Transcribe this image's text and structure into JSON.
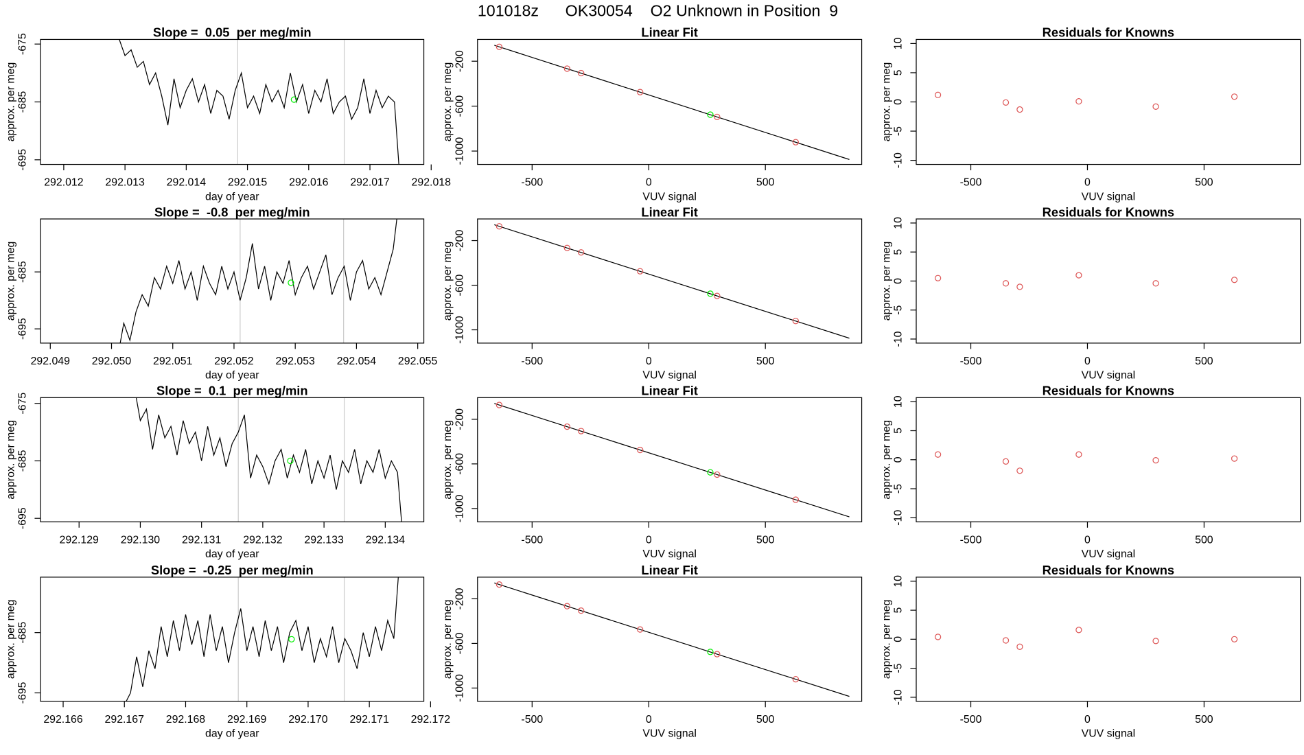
{
  "title": "101018z      OK30054    O2 Unknown in Position  9",
  "chart_data": [
    {
      "type": "line",
      "title": "Slope =  0.05  per meg/min",
      "x_label": "day of year",
      "y_label": "approx. per meg",
      "color": "#000000",
      "x": [
        292.0128,
        292.0129,
        292.013,
        292.0131,
        292.0132,
        292.0133,
        292.0134,
        292.0135,
        292.0136,
        292.0137,
        292.0138,
        292.0139,
        292.014,
        292.0141,
        292.0142,
        292.0143,
        292.0144,
        292.0145,
        292.0146,
        292.0147,
        292.0148,
        292.0149,
        292.015,
        292.0151,
        292.0152,
        292.0153,
        292.0154,
        292.0155,
        292.0156,
        292.0157,
        292.0158,
        292.0159,
        292.016,
        292.0161,
        292.0162,
        292.0163,
        292.0164,
        292.0165,
        292.0166,
        292.0167,
        292.0168,
        292.0169,
        292.017,
        292.0171,
        292.0172,
        292.0173,
        292.0174,
        292.0175
      ],
      "values": [
        -668,
        -674,
        -677,
        -676,
        -679,
        -678,
        -682,
        -680,
        -684,
        -689,
        -681,
        -686,
        -683,
        -681,
        -685,
        -682,
        -687,
        -683,
        -684,
        -688,
        -683,
        -680,
        -686,
        -684,
        -687,
        -682,
        -685,
        -683,
        -686,
        -680,
        -685,
        -682,
        -687,
        -683,
        -685,
        -681,
        -687,
        -685,
        -684,
        -688,
        -686,
        -681,
        -687,
        -683,
        -686,
        -684,
        -685,
        -700
      ],
      "xlim": [
        292.01162,
        292.01788
      ],
      "ylim": [
        -695.8,
        -674.2
      ],
      "xticks": [
        292.012,
        292.013,
        292.014,
        292.015,
        292.016,
        292.017,
        292.018
      ],
      "yticks": [
        -695,
        -685,
        -675
      ],
      "vlines": [
        292.01484,
        292.01658
      ],
      "vline_color": "#cccccc",
      "points": {
        "x": [
          292.01576
        ],
        "values": [
          -684.6
        ],
        "color": "#00ee00"
      }
    },
    {
      "type": "scatter",
      "title": "Linear Fit",
      "x_label": "VUV signal",
      "y_label": "approx. per meg",
      "color": "#dd5555",
      "x": [
        -641,
        -350,
        -290,
        -37,
        293,
        630
      ],
      "values": [
        -72,
        -266,
        -306,
        -475,
        -696,
        -921
      ],
      "points": {
        "x": [
          264
        ],
        "values": [
          -676
        ],
        "color": "#00ee00"
      },
      "fit_line": {
        "x": [
          -662,
          860
        ],
        "values": [
          -58,
          -1075
        ],
        "color": "#000000"
      },
      "xlim": [
        -734,
        913
      ],
      "ylim": [
        -1119,
        -6
      ],
      "xticks": [
        -500,
        0,
        500
      ],
      "yticks": [
        -1000,
        -600,
        -200
      ]
    },
    {
      "type": "scatter",
      "title": "Residuals for Knowns",
      "x_label": "VUV signal",
      "y_label": "approx. per meg",
      "color": "#dd5555",
      "x": [
        -641,
        -350,
        -290,
        -37,
        293,
        630
      ],
      "values": [
        1.2,
        -0.1,
        -1.3,
        0.1,
        -0.8,
        0.9
      ],
      "xlim": [
        -734,
        913
      ],
      "ylim": [
        -10.7,
        10.7
      ],
      "xticks": [
        -500,
        0,
        500
      ],
      "yticks": [
        -10,
        -5,
        0,
        5,
        10
      ]
    },
    {
      "type": "line",
      "title": "Slope =  -0.8  per meg/min",
      "x_label": "day of year",
      "y_label": "approx. per meg",
      "color": "#000000",
      "x": [
        292.0501,
        292.0502,
        292.0503,
        292.0504,
        292.0505,
        292.0506,
        292.0507,
        292.0508,
        292.0509,
        292.051,
        292.0511,
        292.0512,
        292.0513,
        292.0514,
        292.0515,
        292.0516,
        292.0517,
        292.0518,
        292.0519,
        292.052,
        292.0521,
        292.0522,
        292.0523,
        292.0524,
        292.0525,
        292.0526,
        292.0527,
        292.0528,
        292.0529,
        292.053,
        292.0531,
        292.0532,
        292.0533,
        292.0534,
        292.0535,
        292.0536,
        292.0537,
        292.0538,
        292.0539,
        292.054,
        292.0541,
        292.0542,
        292.0543,
        292.0544,
        292.0545,
        292.0546,
        292.0547
      ],
      "values": [
        -700,
        -694,
        -697,
        -692,
        -689,
        -691,
        -686,
        -688,
        -684,
        -687,
        -683,
        -688,
        -685,
        -690,
        -684,
        -687,
        -689,
        -684,
        -688,
        -685,
        -690,
        -686,
        -680,
        -688,
        -684,
        -690,
        -685,
        -687,
        -683,
        -689,
        -686,
        -684,
        -688,
        -685,
        -682,
        -689,
        -686,
        -684,
        -690,
        -685,
        -683,
        -688,
        -686,
        -689,
        -685,
        -681,
        -672
      ],
      "xlim": [
        292.04884,
        292.0551
      ],
      "ylim": [
        -697.5,
        -675.7
      ],
      "xticks": [
        292.049,
        {
          "value": 292.05,
          "label": "292.050"
        },
        292.051,
        292.052,
        292.053,
        292.054,
        292.055
      ],
      "yticks": [
        -695,
        -685
      ],
      "vlines": [
        292.0521,
        292.05379
      ],
      "vline_color": "#cccccc",
      "points": {
        "x": [
          292.05293
        ],
        "values": [
          -686.9
        ],
        "color": "#00ee00"
      }
    },
    {
      "type": "scatter",
      "title": "Linear Fit",
      "x_label": "VUV signal",
      "y_label": "approx. per meg",
      "color": "#dd5555",
      "x": [
        -641,
        -350,
        -290,
        -37,
        293,
        630
      ],
      "values": [
        -72,
        -266,
        -306,
        -475,
        -696,
        -921
      ],
      "points": {
        "x": [
          264
        ],
        "values": [
          -676
        ],
        "color": "#00ee00"
      },
      "fit_line": {
        "x": [
          -662,
          860
        ],
        "values": [
          -58,
          -1075
        ],
        "color": "#000000"
      },
      "xlim": [
        -734,
        913
      ],
      "ylim": [
        -1119,
        -6
      ],
      "xticks": [
        -500,
        0,
        500
      ],
      "yticks": [
        -1000,
        -600,
        -200
      ]
    },
    {
      "type": "scatter",
      "title": "Residuals for Knowns",
      "x_label": "VUV signal",
      "y_label": "approx. per meg",
      "color": "#dd5555",
      "x": [
        -641,
        -350,
        -290,
        -37,
        293,
        630
      ],
      "values": [
        0.5,
        -0.4,
        -1.0,
        1.0,
        -0.4,
        0.2
      ],
      "xlim": [
        -734,
        913
      ],
      "ylim": [
        -10.7,
        10.7
      ],
      "xticks": [
        -500,
        0,
        500
      ],
      "yticks": [
        -10,
        -5,
        0,
        5,
        10
      ]
    },
    {
      "type": "line",
      "title": "Slope =  0.1  per meg/min",
      "x_label": "day of year",
      "y_label": "approx. per meg",
      "color": "#000000",
      "x": [
        292.1299,
        292.13,
        292.1301,
        292.1302,
        292.1303,
        292.1304,
        292.1305,
        292.1306,
        292.1307,
        292.1308,
        292.1309,
        292.131,
        292.1311,
        292.1312,
        292.1313,
        292.1314,
        292.1315,
        292.1316,
        292.1317,
        292.1318,
        292.1319,
        292.132,
        292.1321,
        292.1322,
        292.1323,
        292.1324,
        292.1325,
        292.1326,
        292.1327,
        292.1328,
        292.1329,
        292.133,
        292.1331,
        292.1332,
        292.1333,
        292.1334,
        292.1335,
        292.1336,
        292.1337,
        292.1338,
        292.1339,
        292.134,
        292.1341,
        292.1342,
        292.1343
      ],
      "values": [
        -672,
        -678,
        -676,
        -683,
        -677,
        -681,
        -679,
        -684,
        -678,
        -682,
        -680,
        -685,
        -679,
        -684,
        -681,
        -686,
        -682,
        -680,
        -677,
        -688,
        -684,
        -686,
        -689,
        -685,
        -683,
        -688,
        -684,
        -687,
        -683,
        -689,
        -685,
        -688,
        -684,
        -690,
        -685,
        -687,
        -683,
        -689,
        -685,
        -687,
        -683,
        -688,
        -685,
        -687,
        -700
      ],
      "xlim": [
        292.12837,
        292.13463
      ],
      "ylim": [
        -695.6,
        -674.0
      ],
      "xticks": [
        292.129,
        {
          "value": 292.13,
          "label": "292.130"
        },
        292.131,
        292.132,
        292.133,
        292.134
      ],
      "yticks": [
        -695,
        -685,
        -675
      ],
      "vlines": [
        292.1316,
        292.13333
      ],
      "vline_color": "#cccccc",
      "points": {
        "x": [
          292.13245
        ],
        "values": [
          -685.0
        ],
        "color": "#00ee00"
      }
    },
    {
      "type": "scatter",
      "title": "Linear Fit",
      "x_label": "VUV signal",
      "y_label": "approx. per meg",
      "color": "#dd5555",
      "x": [
        -641,
        -350,
        -290,
        -37,
        293,
        630
      ],
      "values": [
        -72,
        -266,
        -306,
        -475,
        -696,
        -921
      ],
      "points": {
        "x": [
          264
        ],
        "values": [
          -676
        ],
        "color": "#00ee00"
      },
      "fit_line": {
        "x": [
          -662,
          860
        ],
        "values": [
          -58,
          -1075
        ],
        "color": "#000000"
      },
      "xlim": [
        -734,
        913
      ],
      "ylim": [
        -1119,
        -6
      ],
      "xticks": [
        -500,
        0,
        500
      ],
      "yticks": [
        -1000,
        -600,
        -200
      ]
    },
    {
      "type": "scatter",
      "title": "Residuals for Knowns",
      "x_label": "VUV signal",
      "y_label": "approx. per meg",
      "color": "#dd5555",
      "x": [
        -641,
        -350,
        -290,
        -37,
        293,
        630
      ],
      "values": [
        0.9,
        -0.3,
        -1.9,
        0.9,
        -0.1,
        0.2
      ],
      "xlim": [
        -734,
        913
      ],
      "ylim": [
        -10.7,
        10.7
      ],
      "xticks": [
        -500,
        0,
        500
      ],
      "yticks": [
        -10,
        -5,
        0,
        5,
        10
      ]
    },
    {
      "type": "line",
      "title": "Slope =  -0.25  per meg/min",
      "x_label": "day of year",
      "y_label": "approx. per meg",
      "color": "#000000",
      "x": [
        292.167,
        292.1671,
        292.1672,
        292.1673,
        292.1674,
        292.1675,
        292.1676,
        292.1677,
        292.1678,
        292.1679,
        292.168,
        292.1681,
        292.1682,
        292.1683,
        292.1684,
        292.1685,
        292.1686,
        292.1687,
        292.1688,
        292.1689,
        292.169,
        292.1691,
        292.1692,
        292.1693,
        292.1694,
        292.1695,
        292.1696,
        292.1697,
        292.1698,
        292.1699,
        292.17,
        292.1701,
        292.1702,
        292.1703,
        292.1704,
        292.1705,
        292.1706,
        292.1707,
        292.1708,
        292.1709,
        292.171,
        292.1711,
        292.1712,
        292.1713,
        292.1714,
        292.1715
      ],
      "values": [
        -697,
        -695,
        -689,
        -694,
        -688,
        -691,
        -684,
        -689,
        -683,
        -688,
        -682,
        -687,
        -683,
        -689,
        -682,
        -688,
        -684,
        -690,
        -685,
        -681,
        -688,
        -684,
        -689,
        -683,
        -688,
        -684,
        -690,
        -685,
        -683,
        -688,
        -684,
        -690,
        -686,
        -689,
        -684,
        -690,
        -686,
        -688,
        -691,
        -685,
        -689,
        -684,
        -688,
        -683,
        -686,
        -672
      ],
      "xlim": [
        292.16563,
        292.17189
      ],
      "ylim": [
        -696.4,
        -675.8
      ],
      "xticks": [
        292.166,
        292.167,
        292.168,
        292.169,
        {
          "value": 292.17,
          "label": "292.170"
        },
        292.171,
        292.172
      ],
      "yticks": [
        -695,
        -685
      ],
      "vlines": [
        292.16886,
        292.17059
      ],
      "vline_color": "#cccccc",
      "points": {
        "x": [
          292.16973
        ],
        "values": [
          -686.1
        ],
        "color": "#00ee00"
      }
    },
    {
      "type": "scatter",
      "title": "Linear Fit",
      "x_label": "VUV signal",
      "y_label": "approx. per meg",
      "color": "#dd5555",
      "x": [
        -641,
        -350,
        -290,
        -37,
        293,
        630
      ],
      "values": [
        -72,
        -266,
        -306,
        -475,
        -696,
        -921
      ],
      "points": {
        "x": [
          264
        ],
        "values": [
          -676
        ],
        "color": "#00ee00"
      },
      "fit_line": {
        "x": [
          -662,
          860
        ],
        "values": [
          -58,
          -1075
        ],
        "color": "#000000"
      },
      "xlim": [
        -734,
        913
      ],
      "ylim": [
        -1119,
        -6
      ],
      "xticks": [
        -500,
        0,
        500
      ],
      "yticks": [
        -1000,
        -600,
        -200
      ]
    },
    {
      "type": "scatter",
      "title": "Residuals for Knowns",
      "x_label": "VUV signal",
      "y_label": "approx. per meg",
      "color": "#dd5555",
      "x": [
        -641,
        -350,
        -290,
        -37,
        293,
        630
      ],
      "values": [
        0.4,
        -0.2,
        -1.3,
        1.6,
        -0.3,
        0.0
      ],
      "xlim": [
        -734,
        913
      ],
      "ylim": [
        -10.7,
        10.7
      ],
      "xticks": [
        -500,
        0,
        500
      ],
      "yticks": [
        -10,
        -5,
        0,
        5,
        10
      ]
    }
  ]
}
